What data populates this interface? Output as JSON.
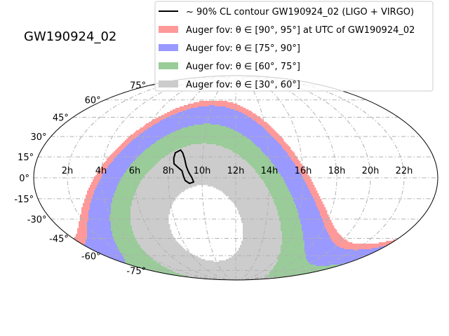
{
  "chart_data": {
    "type": "sky-map",
    "projection": "mollweide",
    "title": "GW190924_02",
    "grid": true,
    "legend_position": "top-right",
    "x_ticks": [
      "2h",
      "4h",
      "6h",
      "8h",
      "10h",
      "12h",
      "14h",
      "16h",
      "18h",
      "20h",
      "22h"
    ],
    "y_ticks": [
      "75°",
      "60°",
      "45°",
      "30°",
      "15°",
      "0°",
      "-15°",
      "-30°",
      "-45°",
      "-60°",
      "-75°"
    ],
    "x_tick_ra_hours": [
      2,
      4,
      6,
      8,
      10,
      12,
      14,
      16,
      18,
      20,
      22
    ],
    "y_tick_dec_deg": [
      75,
      60,
      45,
      30,
      15,
      0,
      -15,
      -30,
      -45,
      -60,
      -75
    ],
    "legend": [
      {
        "label": "~ 90% CL contour GW190924_02 (LIGO + VIRGO)",
        "kind": "line",
        "color": "#000000"
      },
      {
        "label": "Auger fov: θ ∈ [90°, 95°] at UTC of GW190924_02",
        "kind": "patch",
        "color": "#ff9999"
      },
      {
        "label": "Auger fov: θ ∈ [75°, 90°]",
        "kind": "patch",
        "color": "#9999ff"
      },
      {
        "label": "Auger fov: θ ∈ [60°, 75°]",
        "kind": "patch",
        "color": "#99cc99"
      },
      {
        "label": "Auger fov: θ ∈ [30°, 60°]",
        "kind": "patch",
        "color": "#cccccc"
      }
    ],
    "fov": {
      "observatory_latitude_deg": -35.2,
      "zenith_ra_hours": 10,
      "bands": [
        {
          "name": "θ ∈ [30°, 60°]",
          "theta_min": 30,
          "theta_max": 60,
          "color": "#cccccc"
        },
        {
          "name": "θ ∈ [60°, 75°]",
          "theta_min": 60,
          "theta_max": 75,
          "color": "#99cc99"
        },
        {
          "name": "θ ∈ [75°, 90°]",
          "theta_min": 75,
          "theta_max": 90,
          "color": "#9999ff"
        },
        {
          "name": "θ ∈ [90°, 95°]",
          "theta_min": 90,
          "theta_max": 95,
          "color": "#ff9999"
        }
      ]
    },
    "contour": {
      "name": "GW190924_02",
      "color": "#000000",
      "points": [
        {
          "ra": 8.6,
          "dec": 20
        },
        {
          "ra": 8.75,
          "dec": 18
        },
        {
          "ra": 8.9,
          "dec": 14
        },
        {
          "ra": 9.05,
          "dec": 8
        },
        {
          "ra": 9.2,
          "dec": 4
        },
        {
          "ra": 9.4,
          "dec": 0
        },
        {
          "ra": 9.5,
          "dec": -3
        },
        {
          "ra": 9.25,
          "dec": -4
        },
        {
          "ra": 9.0,
          "dec": -2
        },
        {
          "ra": 8.9,
          "dec": 1
        },
        {
          "ra": 8.8,
          "dec": 5
        },
        {
          "ra": 8.6,
          "dec": 7
        },
        {
          "ra": 8.3,
          "dec": 10
        },
        {
          "ra": 8.25,
          "dec": 14
        },
        {
          "ra": 8.3,
          "dec": 18
        }
      ]
    }
  }
}
